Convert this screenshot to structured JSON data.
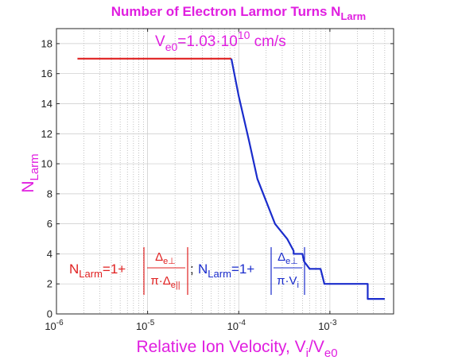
{
  "chart_data": {
    "type": "line",
    "title": "Number of Electron Larmor Turns N",
    "title_sub": "Larm",
    "xlabel": "Relative Ion Velocity, V",
    "xlabel_sub1": "i",
    "xlabel_mid": "/V",
    "xlabel_sub2": "e0",
    "ylabel": "N",
    "ylabel_sub": "Larm",
    "x_scale": "log",
    "xlim": [
      1e-06,
      0.005
    ],
    "ylim": [
      0,
      19
    ],
    "grid": true,
    "yticks": [
      "0",
      "2",
      "4",
      "6",
      "8",
      "10",
      "12",
      "14",
      "16",
      "18"
    ],
    "xticks": [
      {
        "base": "10",
        "exp": "-6"
      },
      {
        "base": "10",
        "exp": "-5"
      },
      {
        "base": "10",
        "exp": "-4"
      },
      {
        "base": "10",
        "exp": "-3"
      }
    ],
    "series": [
      {
        "color": "#e02020",
        "x": [
          1.7e-06,
          8.3e-05
        ],
        "y": [
          17,
          17
        ]
      },
      {
        "color": "#1a2ccc",
        "x": [
          8.3e-05,
          0.0001,
          0.00013,
          0.00016,
          0.0002,
          0.00025,
          0.00034,
          0.0004,
          0.0004,
          0.0005,
          0.00052,
          0.0006,
          0.00075,
          0.00079,
          0.00083,
          0.00087,
          0.001,
          0.0015,
          0.002,
          0.0026,
          0.0026,
          0.004
        ],
        "y": [
          17,
          14.5,
          11.5,
          9,
          7.5,
          6,
          5,
          4.2,
          4,
          4,
          3.5,
          3,
          3,
          3,
          2.5,
          2,
          2,
          2,
          2,
          2,
          1,
          1
        ]
      }
    ],
    "annotations": {
      "velocity": {
        "base": "V",
        "sub": "e0",
        "eq": "=1.03·10",
        "exp": "10",
        "unit": " cm/s"
      },
      "formula_red": {
        "N": "N",
        "sub": "Larm",
        "eq": "=1+",
        "num": "Δ",
        "num_sub": "e⊥",
        "den": "π·Δ",
        "den_sub": "e||"
      },
      "separator": ";",
      "formula_blue": {
        "N": "N",
        "sub": "Larm",
        "eq": "=1+",
        "num": "Δ",
        "num_sub": "e⊥",
        "den": "π·V",
        "den_sub": "i"
      }
    }
  }
}
